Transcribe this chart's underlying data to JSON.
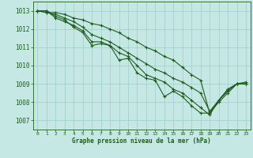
{
  "title": "Graphe pression niveau de la mer (hPa)",
  "bg_color": "#c5e8e4",
  "grid_color": "#9eccc6",
  "line_color": "#1e5c1e",
  "ylim": [
    1006.5,
    1013.5
  ],
  "xlim": [
    -0.5,
    23.5
  ],
  "yticks": [
    1007,
    1008,
    1009,
    1010,
    1011,
    1012,
    1013
  ],
  "xticks": [
    0,
    1,
    2,
    3,
    4,
    5,
    6,
    7,
    8,
    9,
    10,
    11,
    12,
    13,
    14,
    15,
    16,
    17,
    18,
    19,
    20,
    21,
    22,
    23
  ],
  "series": [
    [
      1013.0,
      1013.0,
      1012.7,
      1012.5,
      1012.1,
      1011.8,
      1011.1,
      1011.2,
      1011.1,
      1010.3,
      1010.4,
      1009.6,
      1009.3,
      1009.2,
      1008.3,
      1008.6,
      1008.3,
      1007.8,
      1007.4,
      1007.4,
      1008.0,
      1008.5,
      1009.0,
      1009.0
    ],
    [
      1013.0,
      1013.0,
      1012.6,
      1012.4,
      1012.2,
      1011.9,
      1011.3,
      1011.3,
      1011.1,
      1010.7,
      1010.5,
      1010.0,
      1009.5,
      1009.3,
      1009.1,
      1008.7,
      1008.5,
      1008.1,
      1007.7,
      1007.3,
      1008.1,
      1008.7,
      1009.0,
      1009.0
    ],
    [
      1013.0,
      1012.9,
      1012.8,
      1012.6,
      1012.4,
      1012.1,
      1011.7,
      1011.5,
      1011.3,
      1011.0,
      1010.7,
      1010.4,
      1010.1,
      1009.8,
      1009.6,
      1009.3,
      1009.1,
      1008.8,
      1008.5,
      1007.5,
      1008.1,
      1008.6,
      1009.0,
      1009.1
    ],
    [
      1013.0,
      1012.9,
      1012.9,
      1012.8,
      1012.6,
      1012.5,
      1012.3,
      1012.2,
      1012.0,
      1011.8,
      1011.5,
      1011.3,
      1011.0,
      1010.8,
      1010.5,
      1010.3,
      1009.9,
      1009.5,
      1009.2,
      1007.4,
      1008.1,
      1008.7,
      1009.0,
      1009.0
    ]
  ]
}
